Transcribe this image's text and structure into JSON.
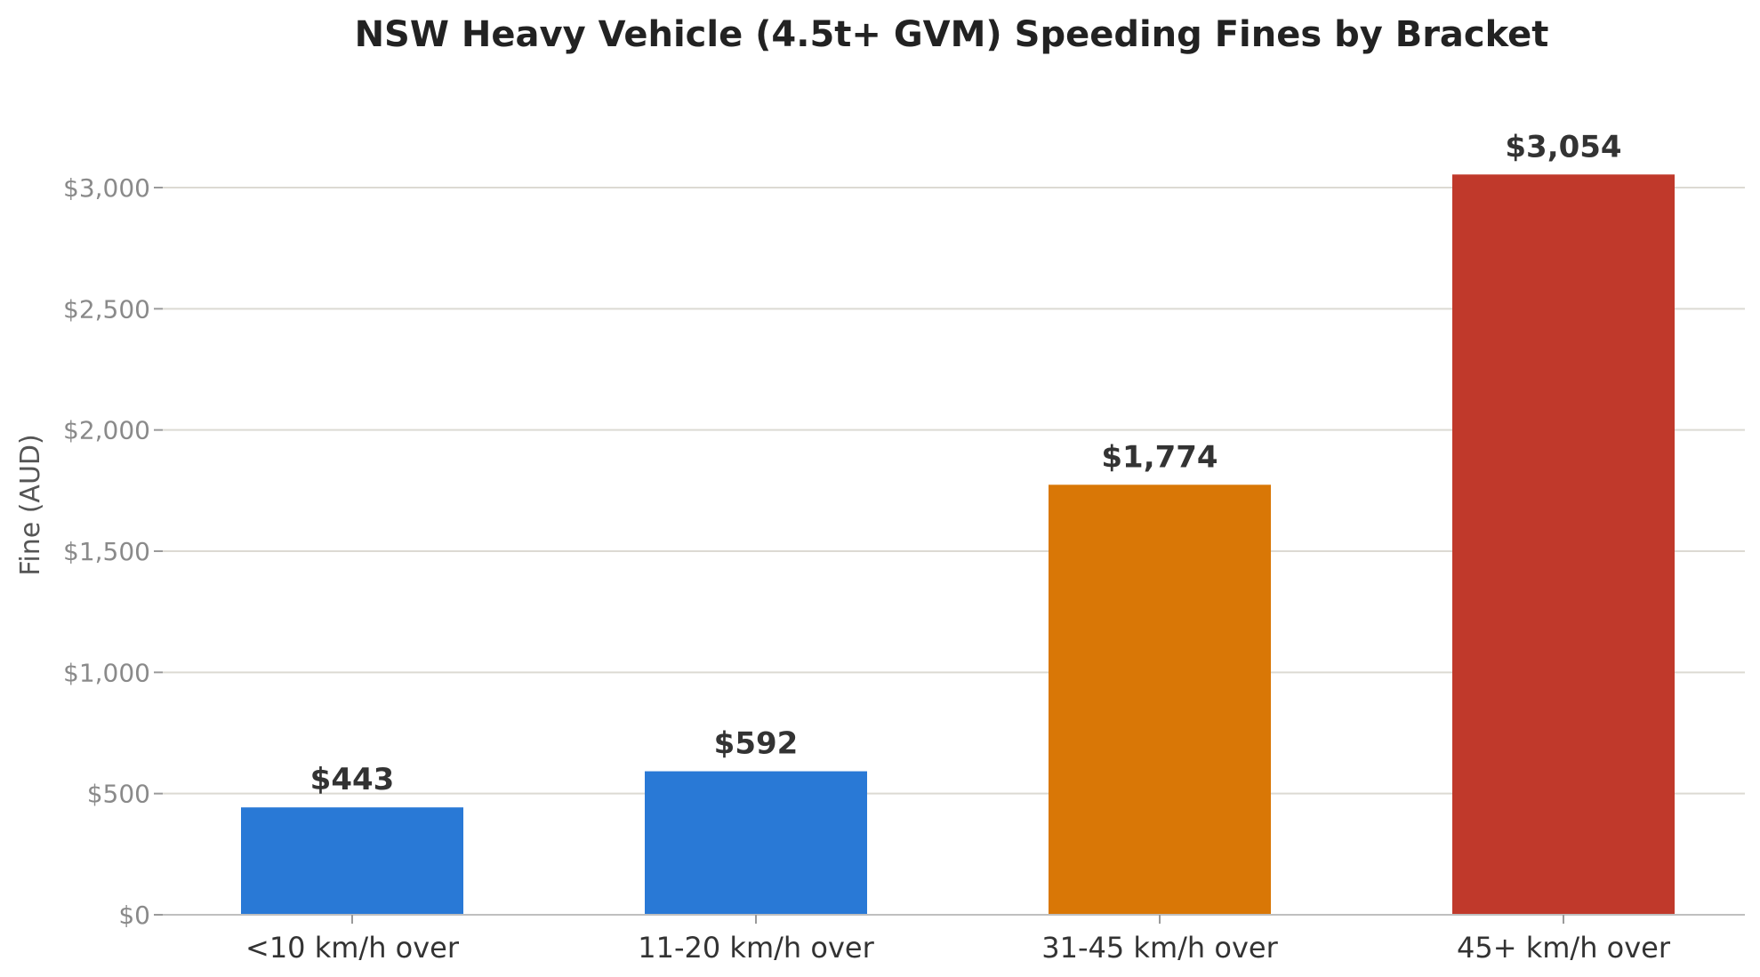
{
  "chart_data": {
    "type": "bar",
    "title": "NSW Heavy Vehicle (4.5t+ GVM) Speeding Fines by Bracket",
    "xlabel": "",
    "ylabel": "Fine (AUD)",
    "categories": [
      "<10 km/h over",
      "11-20 km/h over",
      "31-45 km/h over",
      "45+ km/h over"
    ],
    "values": [
      443,
      592,
      1774,
      3054
    ],
    "data_labels": [
      "$443",
      "$592",
      "$1,774",
      "$3,054"
    ],
    "colors": [
      "#2979d6",
      "#2979d6",
      "#d97706",
      "#c0392b"
    ],
    "ylim": [
      0,
      3200
    ],
    "yticks": [
      0,
      500,
      1000,
      1500,
      2000,
      2500,
      3000
    ],
    "ytick_labels": [
      "$0",
      "$500",
      "$1,000",
      "$1,500",
      "$2,000",
      "$2,500",
      "$3,000"
    ],
    "grid": true
  }
}
